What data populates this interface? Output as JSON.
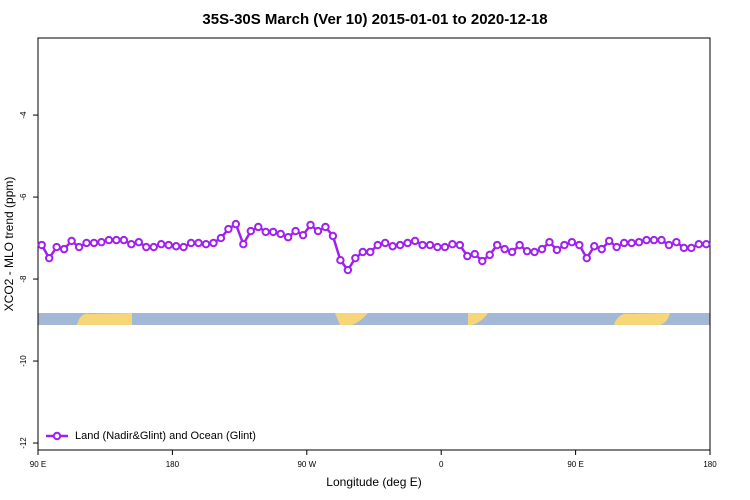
{
  "chart_data": {
    "type": "line",
    "title": "35S-30S March (Ver 10)   2015-01-01 to 2020-12-18",
    "xlabel": "Longitude (deg E)",
    "ylabel": "XCO2 - MLO trend (ppm)",
    "xlim": [
      90,
      540
    ],
    "ylim": [
      -12.17,
      -2.12
    ],
    "xticks": [
      {
        "value": 90,
        "label": "90 E"
      },
      180,
      {
        "value": 270,
        "label": "90 W"
      },
      {
        "value": 360,
        "label": "0"
      },
      {
        "value": 450,
        "label": "90 E"
      },
      {
        "value": 540,
        "label": "180"
      }
    ],
    "yticks": [
      -12,
      -10,
      -8,
      -6,
      -4
    ],
    "legend": "bottom-left",
    "x": [
      92.5,
      97.5,
      102.5,
      107.5,
      112.5,
      117.5,
      122.5,
      127.5,
      132.5,
      137.5,
      142.5,
      147.5,
      152.5,
      157.5,
      162.5,
      167.5,
      172.5,
      177.5,
      182.5,
      187.5,
      192.5,
      197.5,
      202.5,
      207.5,
      212.5,
      217.5,
      222.5,
      227.5,
      232.5,
      237.5,
      242.5,
      247.5,
      252.5,
      257.5,
      262.5,
      267.5,
      272.5,
      277.5,
      282.5,
      287.5,
      292.5,
      297.5,
      302.5,
      307.5,
      312.5,
      317.5,
      322.5,
      327.5,
      332.5,
      337.5,
      342.5,
      347.5,
      352.5,
      357.5,
      362.5,
      367.5,
      372.5,
      377.5,
      382.5,
      387.5,
      392.5,
      397.5,
      402.5,
      407.5,
      412.5,
      417.5,
      422.5,
      427.5,
      432.5,
      437.5,
      442.5,
      447.5,
      452.5,
      457.5,
      462.5,
      467.5,
      472.5,
      477.5,
      482.5,
      487.5,
      492.5,
      497.5,
      502.5,
      507.5,
      512.5,
      517.5,
      522.5,
      527.5,
      532.5,
      537.5
    ],
    "series": [
      {
        "name": "Land (Nadir&Glint) and Ocean (Glint)",
        "color": "#a020f0",
        "values": [
          -7.17,
          -7.49,
          -7.22,
          -7.27,
          -7.07,
          -7.22,
          -7.12,
          -7.12,
          -7.1,
          -7.05,
          -7.05,
          -7.05,
          -7.15,
          -7.1,
          -7.22,
          -7.22,
          -7.15,
          -7.17,
          -7.2,
          -7.22,
          -7.12,
          -7.12,
          -7.15,
          -7.12,
          -7.0,
          -6.78,
          -6.66,
          -7.15,
          -6.83,
          -6.73,
          -6.85,
          -6.85,
          -6.9,
          -6.98,
          -6.83,
          -6.93,
          -6.68,
          -6.83,
          -6.73,
          -6.95,
          -7.54,
          -7.78,
          -7.49,
          -7.34,
          -7.34,
          -7.17,
          -7.12,
          -7.2,
          -7.17,
          -7.12,
          -7.07,
          -7.17,
          -7.17,
          -7.22,
          -7.22,
          -7.15,
          -7.17,
          -7.44,
          -7.39,
          -7.56,
          -7.41,
          -7.17,
          -7.27,
          -7.34,
          -7.17,
          -7.32,
          -7.34,
          -7.27,
          -7.1,
          -7.29,
          -7.17,
          -7.1,
          -7.17,
          -7.49,
          -7.2,
          -7.27,
          -7.07,
          -7.22,
          -7.12,
          -7.12,
          -7.1,
          -7.05,
          -7.05,
          -7.05,
          -7.17,
          -7.1,
          -7.24,
          -7.24,
          -7.15,
          -7.15
        ]
      }
    ]
  }
}
